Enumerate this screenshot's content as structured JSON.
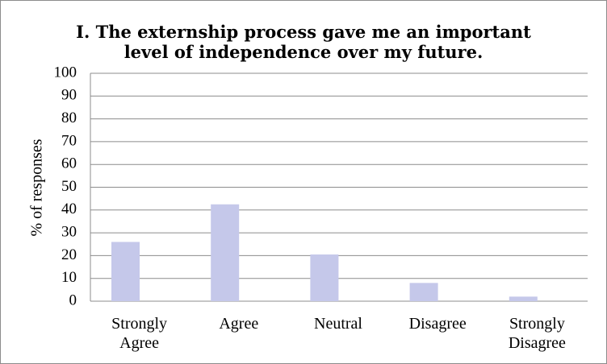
{
  "chart_data": {
    "type": "bar",
    "title_lines": [
      "I. The externship process gave me an important",
      "level of independence over my future."
    ],
    "ylabel": "% of responses",
    "xlabel": "",
    "ylim": [
      0,
      100
    ],
    "yticks": [
      0,
      10,
      20,
      30,
      40,
      50,
      60,
      70,
      80,
      90,
      100
    ],
    "categories": [
      [
        "Strongly",
        "Agree"
      ],
      [
        "Agree"
      ],
      [
        "Neutral"
      ],
      [
        "Disagree"
      ],
      [
        "Strongly",
        "Disagree"
      ]
    ],
    "values": [
      26,
      42.5,
      20.5,
      8,
      2
    ],
    "bar_color": "#c5c8ea",
    "grid": true
  }
}
